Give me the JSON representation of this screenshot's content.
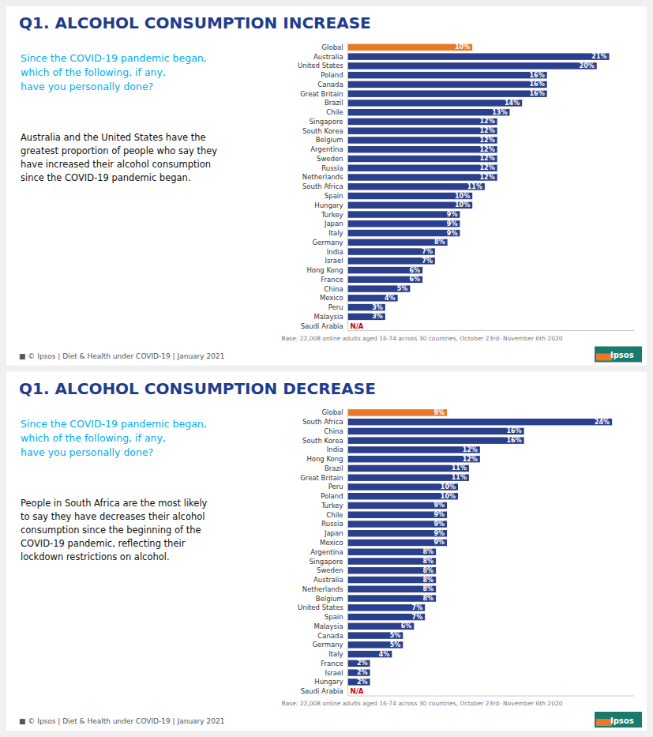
{
  "chart_data": [
    {
      "type": "bar",
      "orientation": "horizontal",
      "title": "Q1. ALCOHOL CONSUMPTION INCREASE",
      "subtitle": "Since the COVID-19 pandemic began,\nwhich of the following, if any,\nhave you personally done?",
      "annotations": [
        "Australia and the United States have the\ngreatest proportion of people who say they\nhave increased their alcohol consumption\nsince the COVID-19 pandemic began.",
        "Base: 22,008 online adults aged 16-74 across 30 countries, October 23rd- November 6th 2020",
        "■  © Ipsos | Diet & Health under COVID-19 | January 2021",
        "Ipsos"
      ],
      "categories": [
        "Global",
        "Australia",
        "United States",
        "Poland",
        "Canada",
        "Great Britain",
        "Brazil",
        "Chile",
        "Singapore",
        "South Korea",
        "Belgium",
        "Argentina",
        "Sweden",
        "Russia",
        "Netherlands",
        "South Africa",
        "Spain",
        "Hungary",
        "Turkey",
        "Japan",
        "Italy",
        "Germany",
        "India",
        "Israel",
        "Hong Kong",
        "France",
        "China",
        "Mexico",
        "Peru",
        "Malaysia",
        "Saudi Arabia"
      ],
      "values": [
        10,
        21,
        20,
        16,
        16,
        16,
        14,
        13,
        12,
        12,
        12,
        12,
        12,
        12,
        12,
        11,
        10,
        10,
        9,
        9,
        9,
        8,
        7,
        7,
        6,
        6,
        5,
        4,
        3,
        3,
        null
      ],
      "value_labels": [
        "10%",
        "21%",
        "20%",
        "16%",
        "16%",
        "16%",
        "14%",
        "13%",
        "12%",
        "12%",
        "12%",
        "12%",
        "12%",
        "12%",
        "12%",
        "11%",
        "10%",
        "10%",
        "9%",
        "9%",
        "9%",
        "8%",
        "7%",
        "7%",
        "6%",
        "6%",
        "5%",
        "4%",
        "3%",
        "3%",
        "N/A"
      ],
      "colors": [
        "#e8792a",
        "#2b3f8c",
        "#2b3f8c",
        "#2b3f8c",
        "#2b3f8c",
        "#2b3f8c",
        "#2b3f8c",
        "#2b3f8c",
        "#2b3f8c",
        "#2b3f8c",
        "#2b3f8c",
        "#2b3f8c",
        "#2b3f8c",
        "#2b3f8c",
        "#2b3f8c",
        "#2b3f8c",
        "#2b3f8c",
        "#2b3f8c",
        "#2b3f8c",
        "#2b3f8c",
        "#2b3f8c",
        "#2b3f8c",
        "#2b3f8c",
        "#2b3f8c",
        "#2b3f8c",
        "#2b3f8c",
        "#2b3f8c",
        "#2b3f8c",
        "#2b3f8c",
        "#2b3f8c",
        null
      ],
      "xlim": [
        0,
        23
      ],
      "data_labels": true,
      "tick_labels": false,
      "grid": false
    },
    {
      "type": "bar",
      "orientation": "horizontal",
      "title": "Q1. ALCOHOL CONSUMPTION DECREASE",
      "subtitle": "Since the COVID-19 pandemic began,\nwhich of the following, if any,\nhave you personally done?",
      "annotations": [
        "People in South Africa are the most likely\nto say they have decreases their alcohol\nconsumption since the beginning of the\nCOVID-19 pandemic, reflecting their\nlockdown restrictions on alcohol.",
        "Base: 22,008 online adults aged 16-74 across 30 countries, October 23rd- November 6th 2020",
        "■  © Ipsos | Diet & Health under COVID-19 | January 2021",
        "Ipsos"
      ],
      "categories": [
        "Global",
        "South Africa",
        "China",
        "South Korea",
        "India",
        "Hong Kong",
        "Brazil",
        "Great Britain",
        "Peru",
        "Poland",
        "Turkey",
        "Chile",
        "Russia",
        "Japan",
        "Mexico",
        "Argentina",
        "Singapore",
        "Sweden",
        "Australia",
        "Netherlands",
        "Belgium",
        "United States",
        "Spain",
        "Malaysia",
        "Canada",
        "Germany",
        "Italy",
        "France",
        "Israel",
        "Hungary",
        "Saudi Arabia"
      ],
      "values": [
        9,
        24,
        16,
        16,
        12,
        12,
        11,
        11,
        10,
        10,
        9,
        9,
        9,
        9,
        9,
        8,
        8,
        8,
        8,
        8,
        8,
        7,
        7,
        6,
        5,
        5,
        4,
        2,
        2,
        2,
        null
      ],
      "value_labels": [
        "9%",
        "24%",
        "16%",
        "16%",
        "12%",
        "12%",
        "11%",
        "11%",
        "10%",
        "10%",
        "9%",
        "9%",
        "9%",
        "9%",
        "9%",
        "8%",
        "8%",
        "8%",
        "8%",
        "8%",
        "8%",
        "7%",
        "7%",
        "6%",
        "5%",
        "5%",
        "4%",
        "2%",
        "2%",
        "2%",
        "N/A"
      ],
      "colors": [
        "#e8792a",
        "#2b3f8c",
        "#2b3f8c",
        "#2b3f8c",
        "#2b3f8c",
        "#2b3f8c",
        "#2b3f8c",
        "#2b3f8c",
        "#2b3f8c",
        "#2b3f8c",
        "#2b3f8c",
        "#2b3f8c",
        "#2b3f8c",
        "#2b3f8c",
        "#2b3f8c",
        "#2b3f8c",
        "#2b3f8c",
        "#2b3f8c",
        "#2b3f8c",
        "#2b3f8c",
        "#2b3f8c",
        "#2b3f8c",
        "#2b3f8c",
        "#2b3f8c",
        "#2b3f8c",
        "#2b3f8c",
        "#2b3f8c",
        "#2b3f8c",
        "#2b3f8c",
        "#2b3f8c",
        null
      ],
      "xlim": [
        0,
        26
      ],
      "data_labels": true,
      "tick_labels": false,
      "grid": false
    }
  ]
}
